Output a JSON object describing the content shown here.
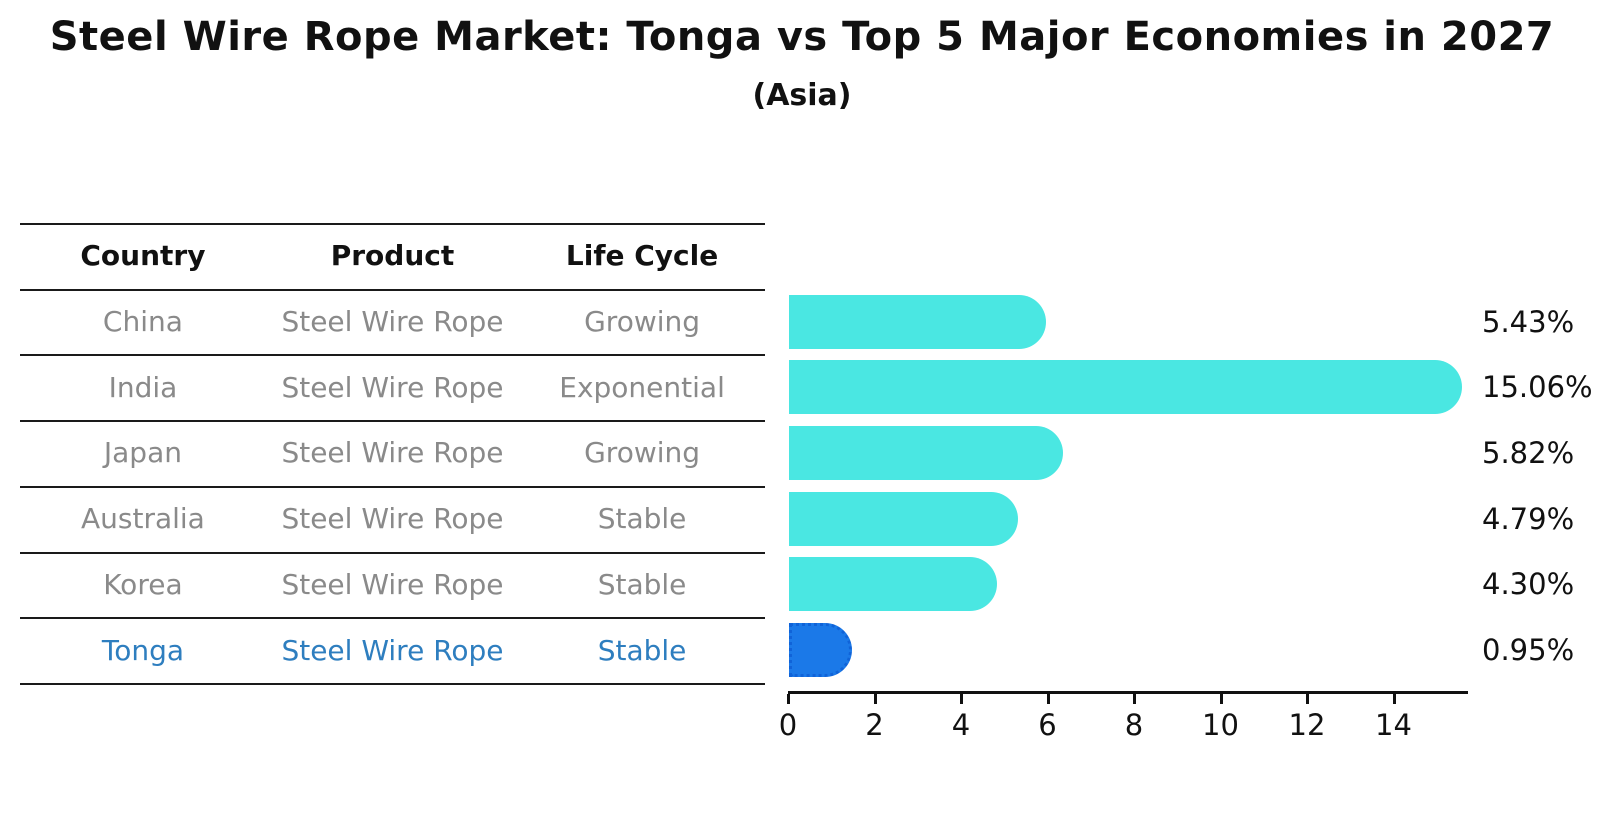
{
  "colors": {
    "bar_teal": "#4AE7E2",
    "bar_blue": "#1B79E8",
    "bar_blue_edge": "#1063D8",
    "highlight_text": "#2E7EBF",
    "cell_text": "#8a8a8a",
    "heading_text": "#111111",
    "rule_line": "#1a1a1a"
  },
  "chart_data": {
    "type": "bar",
    "orientation": "horizontal",
    "title": "Steel Wire Rope Market: Tonga vs Top 5 Major Economies in 2027",
    "subtitle": "(Asia)",
    "categories": [
      "China",
      "India",
      "Japan",
      "Australia",
      "Korea",
      "Tonga"
    ],
    "values": [
      5.43,
      15.06,
      5.82,
      4.79,
      4.3,
      0.95
    ],
    "value_labels": [
      "5.43%",
      "15.06%",
      "5.82%",
      "4.79%",
      "4.30%",
      "0.95%"
    ],
    "highlight_index": 5,
    "xlim": [
      0,
      15.7
    ],
    "xticks": [
      0,
      2,
      4,
      6,
      8,
      10,
      12,
      14
    ],
    "grid": false,
    "legend": false,
    "table": {
      "headers": [
        "Country",
        "Product",
        "Life Cycle"
      ],
      "rows": [
        [
          "China",
          "Steel Wire Rope",
          "Growing"
        ],
        [
          "India",
          "Steel Wire Rope",
          "Exponential"
        ],
        [
          "Japan",
          "Steel Wire Rope",
          "Growing"
        ],
        [
          "Australia",
          "Steel Wire Rope",
          "Stable"
        ],
        [
          "Korea",
          "Steel Wire Rope",
          "Stable"
        ],
        [
          "Tonga",
          "Steel Wire Rope",
          "Stable"
        ]
      ]
    }
  }
}
